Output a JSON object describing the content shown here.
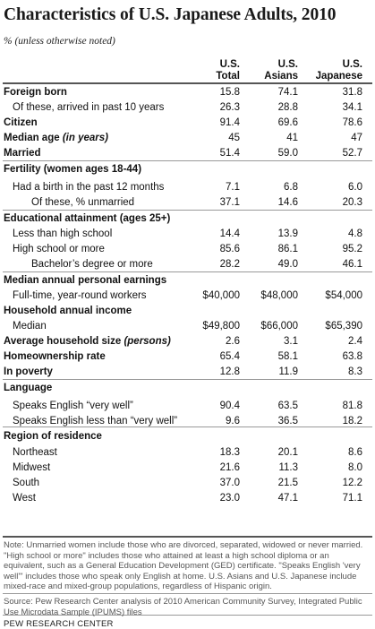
{
  "title": "Characteristics of U.S. Japanese Adults, 2010",
  "subtitle": "% (unless otherwise noted)",
  "columns": [
    {
      "line1": "U.S.",
      "line2": "Total"
    },
    {
      "line1": "U.S.",
      "line2": "Asians"
    },
    {
      "line1": "U.S.",
      "line2": "Japanese"
    }
  ],
  "rows": [
    {
      "label": "Foreign born",
      "style": "bold",
      "values": [
        "15.8",
        "74.1",
        "31.8"
      ]
    },
    {
      "label": "Of these, arrived in past 10 years",
      "style": "i1",
      "values": [
        "26.3",
        "28.8",
        "34.1"
      ]
    },
    {
      "label": "Citizen",
      "style": "bold",
      "values": [
        "91.4",
        "69.6",
        "78.6"
      ]
    },
    {
      "label": "Median age",
      "label_suffix": "(in years)",
      "style": "bold",
      "values": [
        "45",
        "41",
        "47"
      ]
    },
    {
      "label": "Married",
      "style": "bold",
      "values": [
        "51.4",
        "59.0",
        "52.7"
      ]
    },
    {
      "label": "Fertility (women ages 18-44)",
      "style": "bold",
      "values": [
        "",
        "",
        ""
      ]
    },
    {
      "label": "Had a birth in the past 12 months",
      "style": "i1",
      "values": [
        "7.1",
        "6.8",
        "6.0"
      ]
    },
    {
      "label": "Of these, % unmarried",
      "style": "i2",
      "values": [
        "37.1",
        "14.6",
        "20.3"
      ]
    },
    {
      "label": "Educational attainment (ages 25+)",
      "style": "bold",
      "values": [
        "",
        "",
        ""
      ]
    },
    {
      "label": "Less than high school",
      "style": "i1",
      "values": [
        "14.4",
        "13.9",
        "4.8"
      ]
    },
    {
      "label": "High school or more",
      "style": "i1",
      "values": [
        "85.6",
        "86.1",
        "95.2"
      ]
    },
    {
      "label": "Bachelor’s degree or more",
      "style": "i2",
      "values": [
        "28.2",
        "49.0",
        "46.1"
      ]
    },
    {
      "label": "Median annual personal earnings",
      "style": "bold",
      "values": [
        "",
        "",
        ""
      ]
    },
    {
      "label": "Full-time, year-round workers",
      "style": "i1",
      "values": [
        "$40,000",
        "$48,000",
        "$54,000"
      ]
    },
    {
      "label": "Household annual income",
      "style": "bold",
      "values": [
        "",
        "",
        ""
      ]
    },
    {
      "label": "Median",
      "style": "i1",
      "values": [
        "$49,800",
        "$66,000",
        "$65,390"
      ]
    },
    {
      "label": "Average household size",
      "label_suffix": "(persons)",
      "style": "bold",
      "values": [
        "2.6",
        "3.1",
        "2.4"
      ]
    },
    {
      "label": "Homeownership rate",
      "style": "bold",
      "values": [
        "65.4",
        "58.1",
        "63.8"
      ]
    },
    {
      "label": "In poverty",
      "style": "bold",
      "values": [
        "12.8",
        "11.9",
        "8.3"
      ]
    },
    {
      "label": "Language",
      "style": "bold",
      "values": [
        "",
        "",
        ""
      ]
    },
    {
      "label": "Speaks English “very well”",
      "style": "i1",
      "values": [
        "90.4",
        "63.5",
        "81.8"
      ]
    },
    {
      "label": "Speaks English less than “very well”",
      "style": "i1",
      "values": [
        "9.6",
        "36.5",
        "18.2"
      ]
    },
    {
      "label": "Region of residence",
      "style": "bold",
      "values": [
        "",
        "",
        ""
      ]
    },
    {
      "label": "Northeast",
      "style": "i1",
      "values": [
        "18.3",
        "20.1",
        "8.6"
      ]
    },
    {
      "label": "Midwest",
      "style": "i1",
      "values": [
        "21.6",
        "11.3",
        "8.0"
      ]
    },
    {
      "label": "South",
      "style": "i1",
      "values": [
        "37.0",
        "21.5",
        "12.2"
      ]
    },
    {
      "label": "West",
      "style": "i1",
      "values": [
        "23.0",
        "47.1",
        "71.1"
      ]
    }
  ],
  "note": "Note: Unmarried women include those who are divorced, separated, widowed or never married. \"High school or more\" includes those who attained at least a high school diploma or an equivalent, such as a General Education Development (GED) certificate. \"Speaks English 'very well'\" includes those who speak only English at home. U.S. Asians and U.S. Japanese include mixed-race and mixed-group populations, regardless of Hispanic origin.",
  "source": "Source: Pew Research Center analysis of 2010 American Community Survey, Integrated Public Use Microdata Sample (IPUMS) files",
  "credit": "PEW RESEARCH CENTER"
}
